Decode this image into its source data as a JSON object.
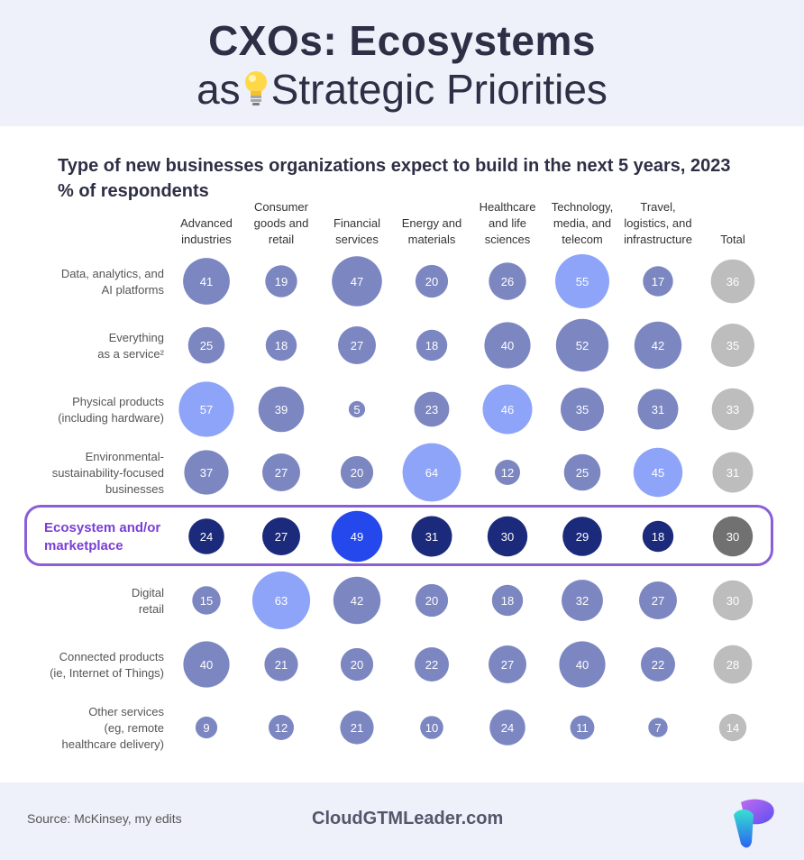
{
  "header": {
    "title_line1": "CXOs: Ecosystems",
    "title_line2_pre": "as",
    "title_line2_post": "Strategic Priorities",
    "bulb_icon": "lightbulb-icon"
  },
  "chart_data": {
    "type": "bubble-table",
    "title": "Type of new businesses organizations expect to build in the next 5 years, 2023",
    "subtitle": "% of respondents",
    "columns": [
      [
        "Advanced",
        "industries"
      ],
      [
        "Consumer",
        "goods and",
        "retail"
      ],
      [
        "Financial",
        "services"
      ],
      [
        "Energy and",
        "materials"
      ],
      [
        "Healthcare",
        "and life",
        "sciences"
      ],
      [
        "Technology,",
        "media, and",
        "telecom"
      ],
      [
        "Travel,",
        "logistics, and",
        "infrastructure"
      ],
      [
        "Total"
      ]
    ],
    "rows": [
      {
        "label": [
          "Data, analytics, and",
          "AI platforms"
        ],
        "values": [
          41,
          19,
          47,
          20,
          26,
          55,
          17,
          36
        ],
        "highlight": false
      },
      {
        "label": [
          "Everything",
          "as a service²"
        ],
        "values": [
          25,
          18,
          27,
          18,
          40,
          52,
          42,
          35
        ],
        "highlight": false
      },
      {
        "label": [
          "Physical products",
          "(including hardware)"
        ],
        "values": [
          57,
          39,
          5,
          23,
          46,
          35,
          31,
          33
        ],
        "highlight": false
      },
      {
        "label": [
          "Environmental-",
          "sustainability-focused",
          "businesses"
        ],
        "values": [
          37,
          27,
          20,
          64,
          12,
          25,
          45,
          31
        ],
        "highlight": false
      },
      {
        "label": [
          "Ecosystem and/or",
          "marketplace"
        ],
        "values": [
          24,
          27,
          49,
          31,
          30,
          29,
          18,
          30
        ],
        "highlight": true
      },
      {
        "label": [
          "Digital",
          "retail"
        ],
        "values": [
          15,
          63,
          42,
          20,
          18,
          32,
          27,
          30
        ],
        "highlight": false
      },
      {
        "label": [
          "Connected products",
          "(ie, Internet of Things)"
        ],
        "values": [
          40,
          21,
          20,
          22,
          27,
          40,
          22,
          28
        ],
        "highlight": false
      },
      {
        "label": [
          "Other services",
          "(eg, remote",
          "healthcare delivery)"
        ],
        "values": [
          9,
          12,
          21,
          10,
          24,
          11,
          7,
          14
        ],
        "highlight": false
      }
    ],
    "colors": {
      "normal": "#7c87c2",
      "column_max": "#8ea4f8",
      "total": "#bdbdbd",
      "highlight": "#1b2a7a",
      "highlight_max": "#2548ec",
      "highlight_total": "#717171",
      "highlight_label": "#7b3fd4"
    }
  },
  "footer": {
    "source": "Source: McKinsey, my edits",
    "brand": "CloudGTMLeader.com",
    "logo_icon": "cloudgtmleader-logo-icon"
  }
}
